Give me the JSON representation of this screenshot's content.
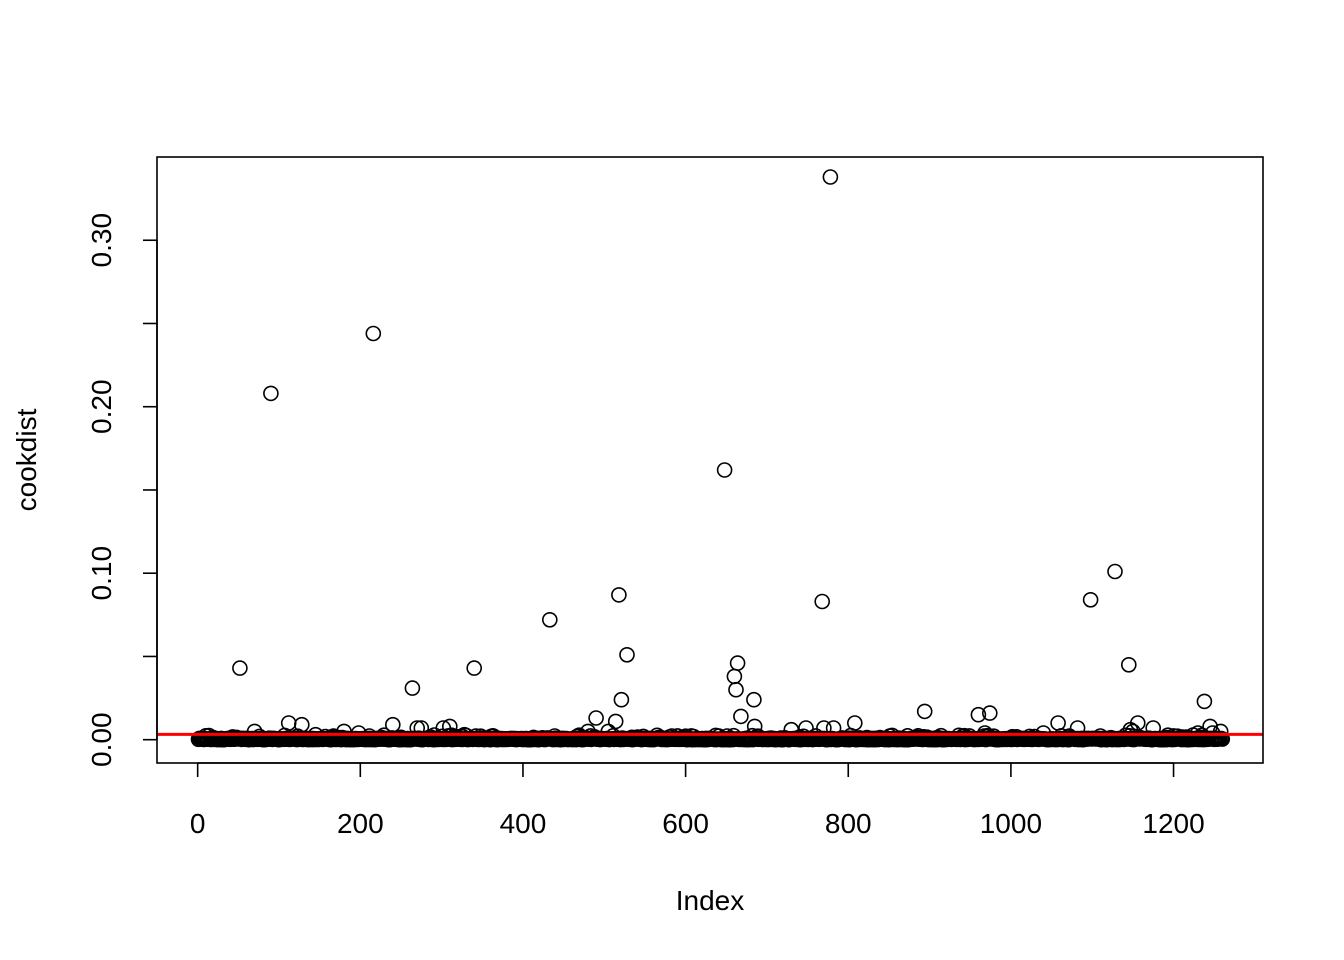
{
  "chart_data": {
    "type": "scatter",
    "title": "",
    "xlabel": "Index",
    "ylabel": "cookdist",
    "xlim": [
      -50,
      1310
    ],
    "ylim": [
      -0.014,
      0.35
    ],
    "x_ticks": [
      0,
      200,
      400,
      600,
      800,
      1000,
      1200
    ],
    "x_tick_labels": [
      "0",
      "200",
      "400",
      "600",
      "800",
      "1000",
      "1200"
    ],
    "y_ticks": [
      0.0,
      0.05,
      0.1,
      0.15,
      0.2,
      0.25,
      0.3
    ],
    "y_tick_labels": [
      "0.00",
      "",
      "0.10",
      "",
      "0.20",
      "",
      "0.30"
    ],
    "n_points": 1260,
    "marker": "open circle",
    "reference_line": {
      "y": 0.0032,
      "color": "#ff0000"
    },
    "colors": {
      "points": "#000000",
      "reference_line": "#ff0000",
      "axes": "#000000"
    },
    "grid": false,
    "notable_points": [
      {
        "x": 52,
        "y": 0.043
      },
      {
        "x": 70,
        "y": 0.005
      },
      {
        "x": 90,
        "y": 0.208
      },
      {
        "x": 112,
        "y": 0.01
      },
      {
        "x": 128,
        "y": 0.009
      },
      {
        "x": 145,
        "y": 0.003
      },
      {
        "x": 180,
        "y": 0.005
      },
      {
        "x": 198,
        "y": 0.004
      },
      {
        "x": 216,
        "y": 0.244
      },
      {
        "x": 240,
        "y": 0.009
      },
      {
        "x": 264,
        "y": 0.031
      },
      {
        "x": 270,
        "y": 0.007
      },
      {
        "x": 275,
        "y": 0.007
      },
      {
        "x": 302,
        "y": 0.007
      },
      {
        "x": 310,
        "y": 0.008
      },
      {
        "x": 328,
        "y": 0.003
      },
      {
        "x": 340,
        "y": 0.043
      },
      {
        "x": 433,
        "y": 0.072
      },
      {
        "x": 480,
        "y": 0.005
      },
      {
        "x": 490,
        "y": 0.013
      },
      {
        "x": 505,
        "y": 0.005
      },
      {
        "x": 514,
        "y": 0.011
      },
      {
        "x": 518,
        "y": 0.087
      },
      {
        "x": 521,
        "y": 0.024
      },
      {
        "x": 528,
        "y": 0.051
      },
      {
        "x": 548,
        "y": 0.002
      },
      {
        "x": 648,
        "y": 0.162
      },
      {
        "x": 660,
        "y": 0.038
      },
      {
        "x": 662,
        "y": 0.03
      },
      {
        "x": 664,
        "y": 0.046
      },
      {
        "x": 668,
        "y": 0.014
      },
      {
        "x": 684,
        "y": 0.024
      },
      {
        "x": 685,
        "y": 0.008
      },
      {
        "x": 730,
        "y": 0.006
      },
      {
        "x": 748,
        "y": 0.007
      },
      {
        "x": 768,
        "y": 0.083
      },
      {
        "x": 770,
        "y": 0.007
      },
      {
        "x": 778,
        "y": 0.338
      },
      {
        "x": 782,
        "y": 0.007
      },
      {
        "x": 808,
        "y": 0.01
      },
      {
        "x": 894,
        "y": 0.017
      },
      {
        "x": 960,
        "y": 0.015
      },
      {
        "x": 968,
        "y": 0.004
      },
      {
        "x": 974,
        "y": 0.016
      },
      {
        "x": 1040,
        "y": 0.004
      },
      {
        "x": 1058,
        "y": 0.01
      },
      {
        "x": 1082,
        "y": 0.007
      },
      {
        "x": 1098,
        "y": 0.084
      },
      {
        "x": 1128,
        "y": 0.101
      },
      {
        "x": 1145,
        "y": 0.045
      },
      {
        "x": 1147,
        "y": 0.006
      },
      {
        "x": 1150,
        "y": 0.005
      },
      {
        "x": 1156,
        "y": 0.01
      },
      {
        "x": 1175,
        "y": 0.007
      },
      {
        "x": 1230,
        "y": 0.004
      },
      {
        "x": 1238,
        "y": 0.023
      },
      {
        "x": 1245,
        "y": 0.008
      },
      {
        "x": 1248,
        "y": 0.004
      },
      {
        "x": 1258,
        "y": 0.005
      }
    ]
  }
}
